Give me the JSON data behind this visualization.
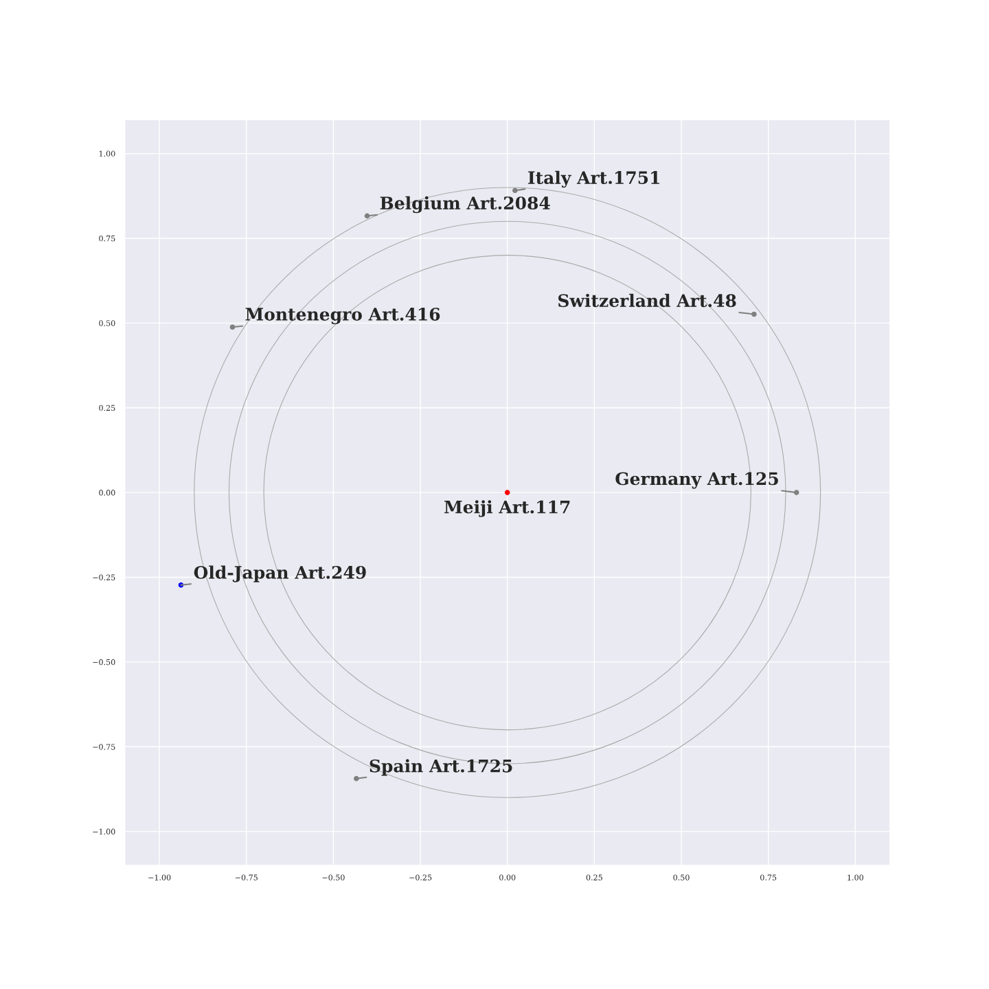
{
  "chart_data": {
    "type": "scatter",
    "xlim": [
      -1.1,
      1.1
    ],
    "ylim": [
      -1.1,
      1.1
    ],
    "xticks": [
      {
        "value": -1,
        "label": "−1.00"
      },
      {
        "value": -0.75,
        "label": "−0.75"
      },
      {
        "value": -0.5,
        "label": "−0.50"
      },
      {
        "value": -0.25,
        "label": "−0.25"
      },
      {
        "value": 0,
        "label": "0.00"
      },
      {
        "value": 0.25,
        "label": "0.25"
      },
      {
        "value": 0.5,
        "label": "0.50"
      },
      {
        "value": 0.75,
        "label": "0.75"
      },
      {
        "value": 1,
        "label": "1.00"
      }
    ],
    "yticks": [
      {
        "value": -1,
        "label": "−1.00"
      },
      {
        "value": -0.75,
        "label": "−0.75"
      },
      {
        "value": -0.5,
        "label": "−0.50"
      },
      {
        "value": -0.25,
        "label": "−0.25"
      },
      {
        "value": 0,
        "label": "0.00"
      },
      {
        "value": 0.25,
        "label": "0.25"
      },
      {
        "value": 0.5,
        "label": "0.50"
      },
      {
        "value": 0.75,
        "label": "0.75"
      },
      {
        "value": 1,
        "label": "1.00"
      }
    ],
    "grid": true,
    "series": [
      {
        "x": [
          0,
          0.022,
          -0.403,
          -0.79,
          0.709,
          0.831,
          -0.938,
          -0.434
        ],
        "values": [
          0,
          0.891,
          0.816,
          0.488,
          0.526,
          0,
          -0.273,
          -0.844
        ],
        "colors": [
          "#ff0000",
          "#808080",
          "#808080",
          "#808080",
          "#808080",
          "#808080",
          "#0000ff",
          "#808080"
        ]
      }
    ],
    "annotations": [
      {
        "text": "Meiji Art.117",
        "x": 0,
        "y": 0
      },
      {
        "text": "Italy Art.1751",
        "x": 0.022,
        "y": 0.891
      },
      {
        "text": "Belgium Art.2084",
        "x": -0.403,
        "y": 0.816
      },
      {
        "text": "Montenegro Art.416",
        "x": -0.79,
        "y": 0.488
      },
      {
        "text": "Switzerland Art.48",
        "x": 0.709,
        "y": 0.526
      },
      {
        "text": "Germany Art.125",
        "x": 0.831,
        "y": 0
      },
      {
        "text": "Old-Japan Art.249",
        "x": -0.938,
        "y": -0.273
      },
      {
        "text": "Spain Art.1725",
        "x": -0.434,
        "y": -0.844
      }
    ]
  }
}
